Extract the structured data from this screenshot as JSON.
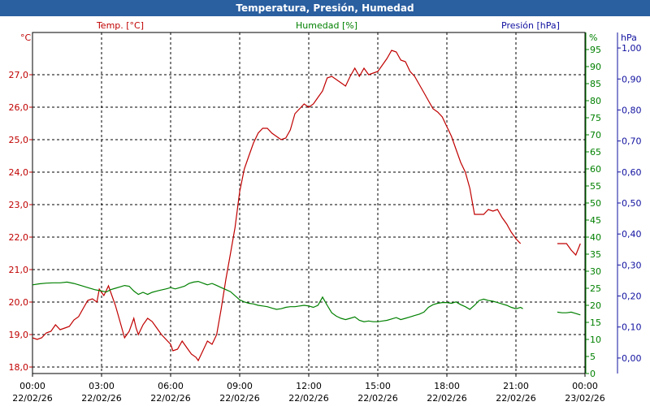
{
  "title": "Temperatura, Presión, Humedad",
  "colors": {
    "temp": "#c00000",
    "hum": "#008000",
    "press": "#1010a0",
    "title_bg": "#2a5fa0"
  },
  "chart_data": {
    "type": "line",
    "title": "Temperatura, Presión, Humedad",
    "x_ticks": [
      {
        "time": "00:00",
        "date": "22/02/26"
      },
      {
        "time": "03:00",
        "date": "22/02/26"
      },
      {
        "time": "06:00",
        "date": "22/02/26"
      },
      {
        "time": "09:00",
        "date": "22/02/26"
      },
      {
        "time": "12:00",
        "date": "22/02/26"
      },
      {
        "time": "15:00",
        "date": "22/02/26"
      },
      {
        "time": "18:00",
        "date": "22/02/26"
      },
      {
        "time": "21:00",
        "date": "22/02/26"
      },
      {
        "time": "00:00",
        "date": "23/02/26"
      }
    ],
    "x_range_hours": [
      0,
      24
    ],
    "axes": {
      "temp": {
        "label": "Temp. [°C]",
        "unit": "°C",
        "range": [
          17.8,
          28.3
        ],
        "ticks": [
          "18,0",
          "19,0",
          "20,0",
          "21,0",
          "22,0",
          "23,0",
          "24,0",
          "25,0",
          "26,0",
          "27,0"
        ]
      },
      "hum": {
        "label": "Humedad [%]",
        "unit": "%",
        "range": [
          0,
          100
        ],
        "ticks": [
          "0",
          "5",
          "10",
          "15",
          "20",
          "25",
          "30",
          "35",
          "40",
          "45",
          "50",
          "55",
          "60",
          "65",
          "70",
          "75",
          "80",
          "85",
          "90",
          "95"
        ]
      },
      "press": {
        "label": "Presión [hPa]",
        "unit": "hPa",
        "range": [
          -0.05,
          1.05
        ],
        "ticks": [
          "0,00",
          "0,10",
          "0,20",
          "0,30",
          "0,40",
          "0,50",
          "0,60",
          "0,70",
          "0,80",
          "0,90",
          "1,00"
        ]
      }
    },
    "series": [
      {
        "name": "Temp. [°C]",
        "axis": "temp",
        "segments": [
          [
            [
              0,
              18.9
            ],
            [
              0.2,
              18.85
            ],
            [
              0.4,
              18.9
            ],
            [
              0.6,
              19.05
            ],
            [
              0.8,
              19.1
            ],
            [
              1.0,
              19.3
            ],
            [
              1.2,
              19.15
            ],
            [
              1.4,
              19.2
            ],
            [
              1.6,
              19.25
            ],
            [
              1.8,
              19.45
            ],
            [
              2.0,
              19.55
            ],
            [
              2.2,
              19.8
            ],
            [
              2.4,
              20.05
            ],
            [
              2.6,
              20.1
            ],
            [
              2.8,
              20.0
            ],
            [
              2.9,
              20.4
            ],
            [
              3.0,
              20.3
            ],
            [
              3.1,
              20.2
            ],
            [
              3.2,
              20.35
            ],
            [
              3.3,
              20.5
            ],
            [
              3.4,
              20.3
            ],
            [
              3.6,
              19.9
            ],
            [
              3.8,
              19.4
            ],
            [
              4.0,
              18.9
            ],
            [
              4.2,
              19.1
            ],
            [
              4.4,
              19.5
            ],
            [
              4.5,
              19.2
            ],
            [
              4.6,
              19.0
            ],
            [
              4.8,
              19.3
            ],
            [
              5.0,
              19.5
            ],
            [
              5.2,
              19.4
            ],
            [
              5.4,
              19.2
            ],
            [
              5.6,
              19.0
            ],
            [
              5.8,
              18.85
            ],
            [
              6.0,
              18.7
            ],
            [
              6.1,
              18.5
            ],
            [
              6.3,
              18.55
            ],
            [
              6.5,
              18.8
            ],
            [
              6.7,
              18.6
            ],
            [
              6.9,
              18.4
            ],
            [
              7.1,
              18.3
            ],
            [
              7.2,
              18.2
            ],
            [
              7.4,
              18.5
            ],
            [
              7.6,
              18.8
            ],
            [
              7.8,
              18.7
            ],
            [
              8.0,
              19.0
            ],
            [
              8.2,
              19.8
            ],
            [
              8.4,
              20.7
            ],
            [
              8.6,
              21.5
            ],
            [
              8.8,
              22.3
            ],
            [
              9.0,
              23.4
            ],
            [
              9.2,
              24.1
            ],
            [
              9.4,
              24.5
            ],
            [
              9.6,
              24.9
            ],
            [
              9.8,
              25.2
            ],
            [
              10.0,
              25.35
            ],
            [
              10.2,
              25.35
            ],
            [
              10.4,
              25.2
            ],
            [
              10.6,
              25.1
            ],
            [
              10.8,
              25.0
            ],
            [
              11.0,
              25.05
            ],
            [
              11.2,
              25.3
            ],
            [
              11.4,
              25.8
            ],
            [
              11.6,
              25.95
            ],
            [
              11.8,
              26.1
            ],
            [
              12.0,
              26.0
            ],
            [
              12.2,
              26.1
            ],
            [
              12.4,
              26.3
            ],
            [
              12.6,
              26.5
            ],
            [
              12.8,
              26.9
            ],
            [
              13.0,
              26.95
            ],
            [
              13.2,
              26.85
            ],
            [
              13.4,
              26.75
            ],
            [
              13.6,
              26.65
            ],
            [
              13.8,
              26.95
            ],
            [
              14.0,
              27.2
            ],
            [
              14.2,
              26.95
            ],
            [
              14.4,
              27.2
            ],
            [
              14.6,
              27.0
            ],
            [
              14.8,
              27.05
            ],
            [
              15.0,
              27.1
            ],
            [
              15.2,
              27.3
            ],
            [
              15.4,
              27.5
            ],
            [
              15.6,
              27.75
            ],
            [
              15.8,
              27.7
            ],
            [
              16.0,
              27.45
            ],
            [
              16.2,
              27.4
            ],
            [
              16.4,
              27.1
            ],
            [
              16.6,
              26.95
            ],
            [
              16.8,
              26.7
            ],
            [
              17.0,
              26.45
            ],
            [
              17.2,
              26.2
            ],
            [
              17.4,
              25.95
            ],
            [
              17.6,
              25.85
            ],
            [
              17.8,
              25.7
            ],
            [
              18.0,
              25.4
            ],
            [
              18.2,
              25.1
            ],
            [
              18.4,
              24.7
            ],
            [
              18.6,
              24.3
            ],
            [
              18.8,
              24.0
            ],
            [
              19.0,
              23.5
            ],
            [
              19.2,
              22.7
            ],
            [
              19.4,
              22.7
            ],
            [
              19.6,
              22.7
            ],
            [
              19.8,
              22.85
            ],
            [
              20.0,
              22.8
            ],
            [
              20.2,
              22.85
            ],
            [
              20.4,
              22.6
            ],
            [
              20.6,
              22.4
            ],
            [
              20.8,
              22.15
            ],
            [
              21.0,
              21.95
            ],
            [
              21.2,
              21.8
            ]
          ],
          [
            [
              22.8,
              21.8
            ],
            [
              23.2,
              21.8
            ],
            [
              23.4,
              21.6
            ],
            [
              23.6,
              21.45
            ],
            [
              23.8,
              21.8
            ]
          ]
        ]
      },
      {
        "name": "Humedad [%]",
        "axis": "hum",
        "segments": [
          [
            [
              0,
              26
            ],
            [
              0.3,
              26.3
            ],
            [
              0.6,
              26.5
            ],
            [
              0.9,
              26.6
            ],
            [
              1.2,
              26.6
            ],
            [
              1.5,
              26.8
            ],
            [
              1.8,
              26.4
            ],
            [
              2.1,
              25.8
            ],
            [
              2.4,
              25.2
            ],
            [
              2.7,
              24.6
            ],
            [
              3.0,
              24.2
            ],
            [
              3.2,
              23.9
            ],
            [
              3.4,
              24.6
            ],
            [
              3.6,
              25.0
            ],
            [
              3.8,
              25.4
            ],
            [
              4.0,
              25.8
            ],
            [
              4.2,
              25.6
            ],
            [
              4.4,
              24.2
            ],
            [
              4.6,
              23.2
            ],
            [
              4.8,
              23.8
            ],
            [
              5.0,
              23.2
            ],
            [
              5.2,
              23.8
            ],
            [
              5.4,
              24.2
            ],
            [
              5.6,
              24.5
            ],
            [
              5.8,
              24.8
            ],
            [
              6.0,
              25.2
            ],
            [
              6.2,
              24.8
            ],
            [
              6.4,
              25.2
            ],
            [
              6.6,
              25.6
            ],
            [
              6.8,
              26.4
            ],
            [
              7.0,
              26.8
            ],
            [
              7.2,
              27.0
            ],
            [
              7.4,
              26.5
            ],
            [
              7.6,
              26.0
            ],
            [
              7.8,
              26.4
            ],
            [
              8.0,
              25.8
            ],
            [
              8.2,
              25.2
            ],
            [
              8.4,
              24.6
            ],
            [
              8.6,
              24.0
            ],
            [
              8.8,
              22.8
            ],
            [
              9.0,
              21.6
            ],
            [
              9.2,
              21.0
            ],
            [
              9.4,
              20.6
            ],
            [
              9.6,
              20.4
            ],
            [
              9.8,
              20.0
            ],
            [
              10.0,
              19.8
            ],
            [
              10.2,
              19.6
            ],
            [
              10.4,
              19.2
            ],
            [
              10.6,
              18.8
            ],
            [
              10.8,
              19.0
            ],
            [
              11.0,
              19.4
            ],
            [
              11.2,
              19.6
            ],
            [
              11.4,
              19.6
            ],
            [
              11.6,
              19.8
            ],
            [
              11.8,
              20.0
            ],
            [
              12.0,
              19.8
            ],
            [
              12.2,
              19.4
            ],
            [
              12.4,
              20.0
            ],
            [
              12.6,
              22.4
            ],
            [
              12.8,
              20.0
            ],
            [
              13.0,
              17.8
            ],
            [
              13.2,
              16.8
            ],
            [
              13.4,
              16.2
            ],
            [
              13.6,
              15.8
            ],
            [
              13.8,
              16.2
            ],
            [
              14.0,
              16.6
            ],
            [
              14.2,
              15.6
            ],
            [
              14.4,
              15.2
            ],
            [
              14.6,
              15.4
            ],
            [
              14.8,
              15.2
            ],
            [
              15.0,
              15.2
            ],
            [
              15.2,
              15.4
            ],
            [
              15.4,
              15.6
            ],
            [
              15.6,
              16.0
            ],
            [
              15.8,
              16.4
            ],
            [
              16.0,
              15.8
            ],
            [
              16.2,
              16.2
            ],
            [
              16.4,
              16.6
            ],
            [
              16.6,
              17.0
            ],
            [
              16.8,
              17.4
            ],
            [
              17.0,
              18.0
            ],
            [
              17.2,
              19.4
            ],
            [
              17.4,
              20.2
            ],
            [
              17.6,
              20.6
            ],
            [
              17.8,
              20.8
            ],
            [
              18.0,
              20.8
            ],
            [
              18.2,
              20.6
            ],
            [
              18.4,
              21.0
            ],
            [
              18.6,
              20.2
            ],
            [
              18.8,
              19.6
            ],
            [
              19.0,
              18.8
            ],
            [
              19.2,
              20.0
            ],
            [
              19.4,
              21.4
            ],
            [
              19.6,
              21.8
            ],
            [
              19.8,
              21.4
            ],
            [
              20.0,
              21.2
            ],
            [
              20.2,
              20.8
            ],
            [
              20.4,
              20.4
            ],
            [
              20.6,
              20.0
            ],
            [
              20.8,
              19.4
            ],
            [
              21.0,
              19.0
            ],
            [
              21.2,
              19.4
            ],
            [
              21.3,
              19.0
            ]
          ],
          [
            [
              22.8,
              18.0
            ],
            [
              23.0,
              17.8
            ],
            [
              23.2,
              17.8
            ],
            [
              23.4,
              18.0
            ],
            [
              23.6,
              17.6
            ],
            [
              23.8,
              17.2
            ]
          ]
        ]
      }
    ]
  }
}
